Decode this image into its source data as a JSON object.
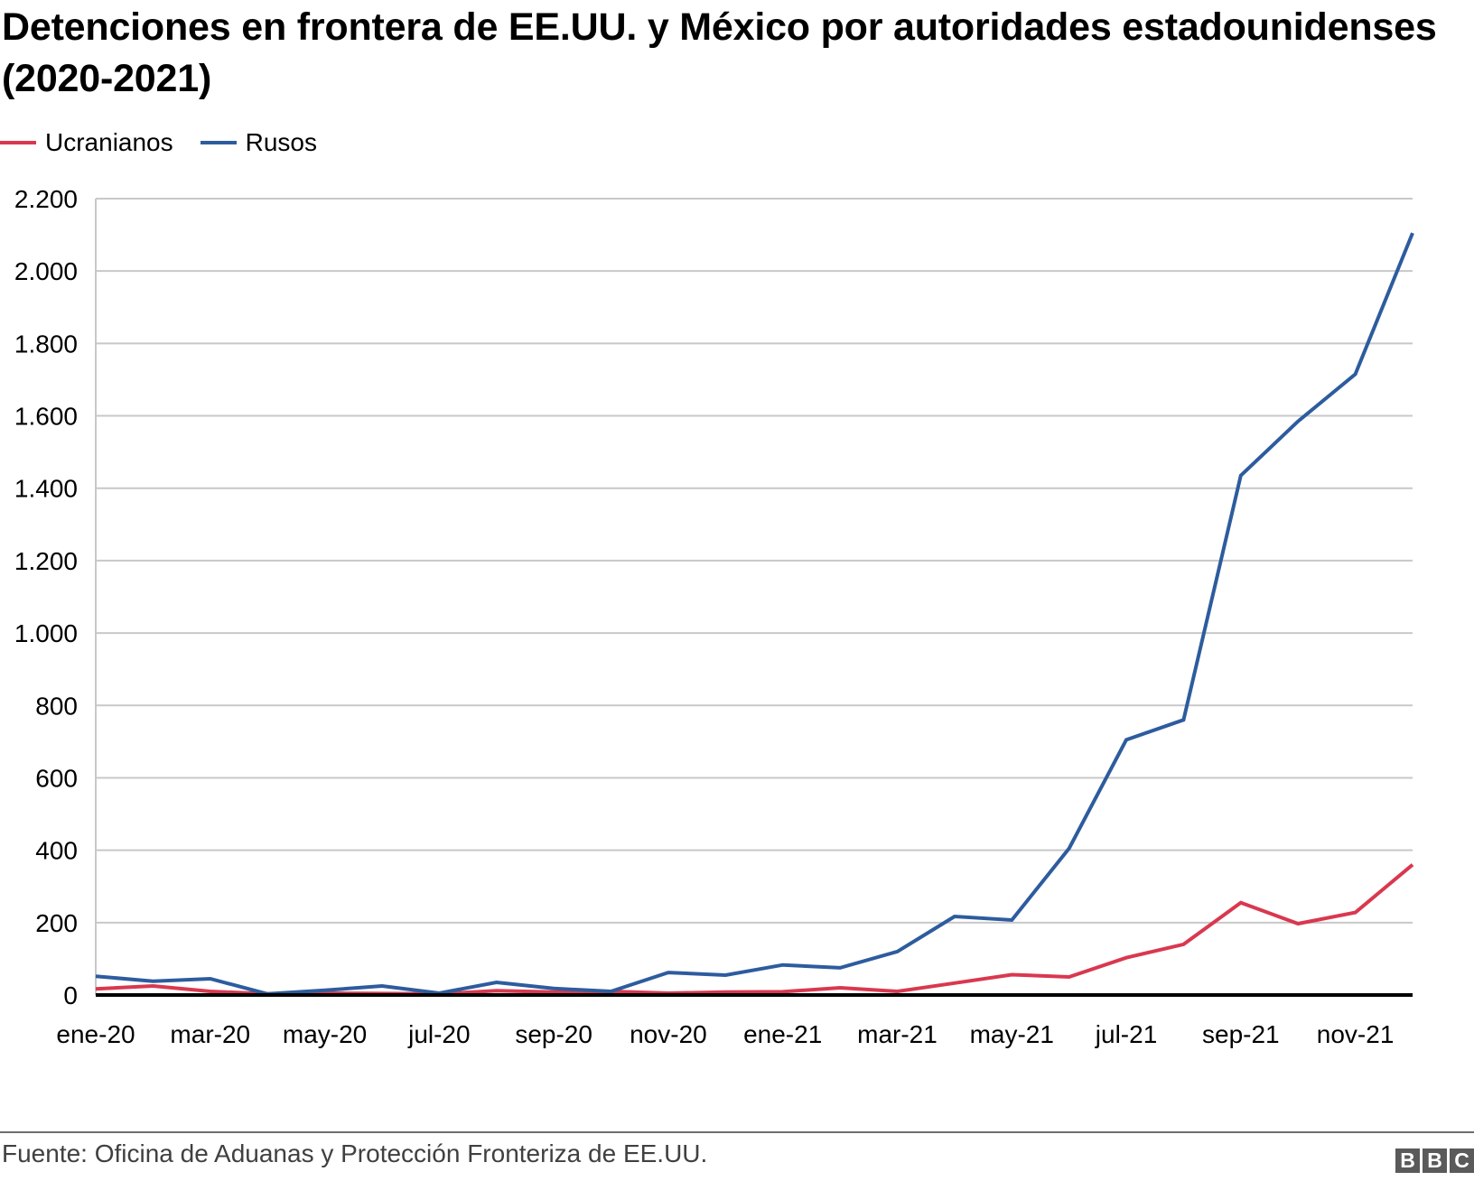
{
  "header": {
    "title": "Detenciones en frontera de EE.UU. y México por autoridades estadounidenses (2020-2021)"
  },
  "legend": [
    {
      "label": "Ucranianos",
      "color": "#d9384f"
    },
    {
      "label": "Rusos",
      "color": "#2d5c9e"
    }
  ],
  "footer": {
    "source": "Fuente: Oficina de Aduanas y Protección Fronteriza de EE.UU.",
    "logo_letters": [
      "B",
      "B",
      "C"
    ]
  },
  "chart_data": {
    "type": "line",
    "title": "Detenciones en frontera de EE.UU. y México por autoridades estadounidenses (2020-2021)",
    "xlabel": "",
    "ylabel": "",
    "ylim": [
      0,
      2200
    ],
    "yticks": [
      0,
      200,
      400,
      600,
      800,
      1000,
      1200,
      1400,
      1600,
      1800,
      2000,
      2200
    ],
    "ytick_labels": [
      "0",
      "200",
      "400",
      "600",
      "800",
      "1.000",
      "1.200",
      "1.400",
      "1.600",
      "1.800",
      "2.000",
      "2.200"
    ],
    "grid": true,
    "legend_position": "top-left",
    "x": [
      "ene-20",
      "feb-20",
      "mar-20",
      "abr-20",
      "may-20",
      "jun-20",
      "jul-20",
      "ago-20",
      "sep-20",
      "oct-20",
      "nov-20",
      "dic-20",
      "ene-21",
      "feb-21",
      "mar-21",
      "abr-21",
      "may-21",
      "jun-21",
      "jul-21",
      "ago-21",
      "sep-21",
      "oct-21",
      "nov-21",
      "dic-21"
    ],
    "xtick_labels": [
      "ene-20",
      "mar-20",
      "may-20",
      "jul-20",
      "sep-20",
      "nov-20",
      "ene-21",
      "mar-21",
      "may-21",
      "jul-21",
      "sep-21",
      "nov-21"
    ],
    "series": [
      {
        "name": "Ucranianos",
        "color": "#d9384f",
        "values": [
          17,
          25,
          10,
          3,
          5,
          4,
          3,
          12,
          8,
          10,
          5,
          8,
          9,
          20,
          10,
          33,
          56,
          50,
          103,
          140,
          255,
          197,
          228,
          360
        ]
      },
      {
        "name": "Rusos",
        "color": "#2d5c9e",
        "values": [
          52,
          38,
          45,
          3,
          13,
          25,
          5,
          35,
          18,
          10,
          62,
          55,
          83,
          75,
          120,
          217,
          207,
          405,
          705,
          760,
          1435,
          1585,
          1715,
          2105
        ]
      }
    ]
  }
}
